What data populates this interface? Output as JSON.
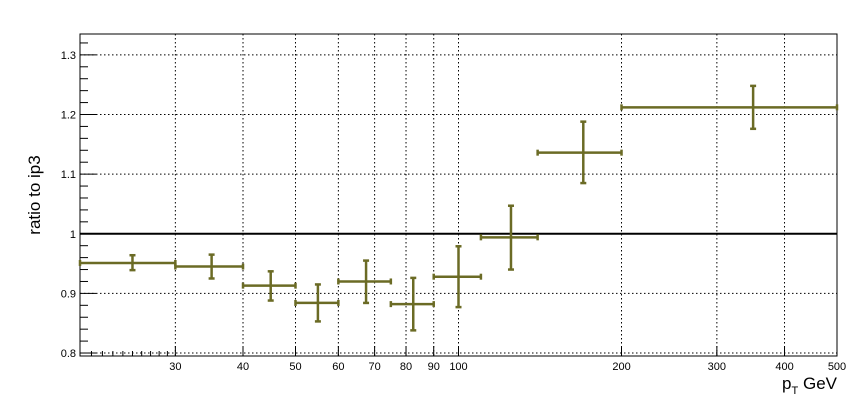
{
  "chart_data": {
    "type": "scatter",
    "xlabel": "p",
    "xlabel_sub": "T",
    "xlabel_unit": " GeV",
    "ylabel": "ratio to ip3",
    "xscale": "log",
    "xlim": [
      20,
      500
    ],
    "ylim": [
      0.795,
      1.335
    ],
    "grid": true,
    "reference_line": 1.0,
    "colors": {
      "series": "#6b6b25",
      "reference": "#000000",
      "grid": "#000000"
    },
    "xticks": [
      {
        "value": 30,
        "label": "30"
      },
      {
        "value": 40,
        "label": "40"
      },
      {
        "value": 50,
        "label": "50"
      },
      {
        "value": 60,
        "label": "60"
      },
      {
        "value": 70,
        "label": "70"
      },
      {
        "value": 80,
        "label": "80"
      },
      {
        "value": 90,
        "label": "90"
      },
      {
        "value": 100,
        "label": "100"
      },
      {
        "value": 200,
        "label": "200"
      },
      {
        "value": 300,
        "label": "300"
      },
      {
        "value": 400,
        "label": "400"
      },
      {
        "value": 500,
        "label": "500"
      }
    ],
    "yticks": [
      {
        "value": 0.8,
        "label": "0.8"
      },
      {
        "value": 0.9,
        "label": "0.9"
      },
      {
        "value": 1.0,
        "label": "1"
      },
      {
        "value": 1.1,
        "label": "1.1"
      },
      {
        "value": 1.2,
        "label": "1.2"
      },
      {
        "value": 1.3,
        "label": "1.3"
      }
    ],
    "points": [
      {
        "x": 25,
        "xlo": 20,
        "xhi": 30,
        "y": 0.951,
        "ylo": 0.939,
        "yhi": 0.964
      },
      {
        "x": 35,
        "xlo": 30,
        "xhi": 40,
        "y": 0.945,
        "ylo": 0.925,
        "yhi": 0.965
      },
      {
        "x": 45,
        "xlo": 40,
        "xhi": 50,
        "y": 0.913,
        "ylo": 0.888,
        "yhi": 0.937
      },
      {
        "x": 55,
        "xlo": 50,
        "xhi": 60,
        "y": 0.884,
        "ylo": 0.853,
        "yhi": 0.915
      },
      {
        "x": 67.5,
        "xlo": 60,
        "xhi": 75,
        "y": 0.92,
        "ylo": 0.884,
        "yhi": 0.955
      },
      {
        "x": 82.5,
        "xlo": 75,
        "xhi": 90,
        "y": 0.882,
        "ylo": 0.838,
        "yhi": 0.926
      },
      {
        "x": 100,
        "xlo": 90,
        "xhi": 110,
        "y": 0.928,
        "ylo": 0.877,
        "yhi": 0.979
      },
      {
        "x": 125,
        "xlo": 110,
        "xhi": 140,
        "y": 0.994,
        "ylo": 0.94,
        "yhi": 1.047
      },
      {
        "x": 170,
        "xlo": 140,
        "xhi": 200,
        "y": 1.136,
        "ylo": 1.085,
        "yhi": 1.188
      },
      {
        "x": 350,
        "xlo": 200,
        "xhi": 500,
        "y": 1.212,
        "ylo": 1.176,
        "yhi": 1.248
      }
    ]
  }
}
